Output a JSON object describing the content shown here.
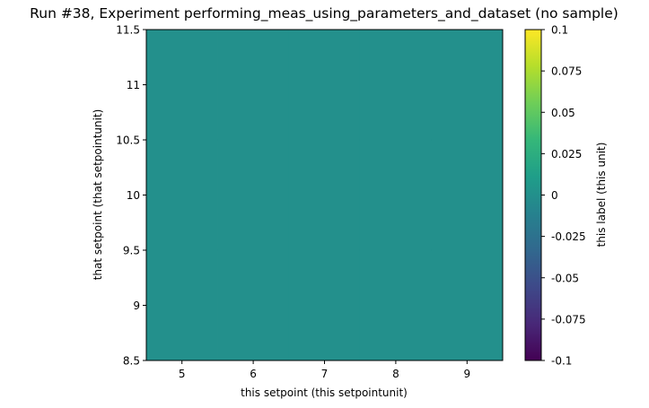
{
  "chart_data": {
    "type": "heatmap",
    "title": "Run #38, Experiment performing_meas_using_parameters_and_dataset (no sample)",
    "xlabel": "this setpoint (this setpointunit)",
    "ylabel": "that setpoint (that setpointunit)",
    "xlim": [
      4.5,
      9.5
    ],
    "ylim": [
      8.5,
      11.5
    ],
    "xticks": [
      5,
      6,
      7,
      8,
      9
    ],
    "xtick_labels": [
      "5",
      "6",
      "7",
      "8",
      "9"
    ],
    "yticks": [
      8.5,
      9,
      9.5,
      10,
      10.5,
      11,
      11.5
    ],
    "ytick_labels": [
      "8.5",
      "9",
      "9.5",
      "10",
      "10.5",
      "11",
      "11.5"
    ],
    "x": [
      5,
      6,
      7,
      8,
      9
    ],
    "y": [
      9,
      10,
      11
    ],
    "z": [
      [
        0,
        0,
        0,
        0,
        0
      ],
      [
        0,
        0,
        0,
        0,
        0
      ],
      [
        0,
        0,
        0,
        0,
        0
      ]
    ],
    "colorbar": {
      "label": "this label (this unit)",
      "range": [
        -0.1,
        0.1
      ],
      "ticks": [
        -0.1,
        -0.075,
        -0.05,
        -0.025,
        0,
        0.025,
        0.05,
        0.075,
        0.1
      ],
      "tick_labels": [
        "-0.1",
        "-0.075",
        "-0.05",
        "-0.025",
        "0",
        "0.025",
        "0.05",
        "0.075",
        "0.1"
      ],
      "colormap": "viridis",
      "colormap_stops": [
        "#440154",
        "#482878",
        "#3e4989",
        "#31688e",
        "#26828e",
        "#1f9e89",
        "#35b779",
        "#6ece58",
        "#b5de2b",
        "#fde725"
      ]
    }
  }
}
